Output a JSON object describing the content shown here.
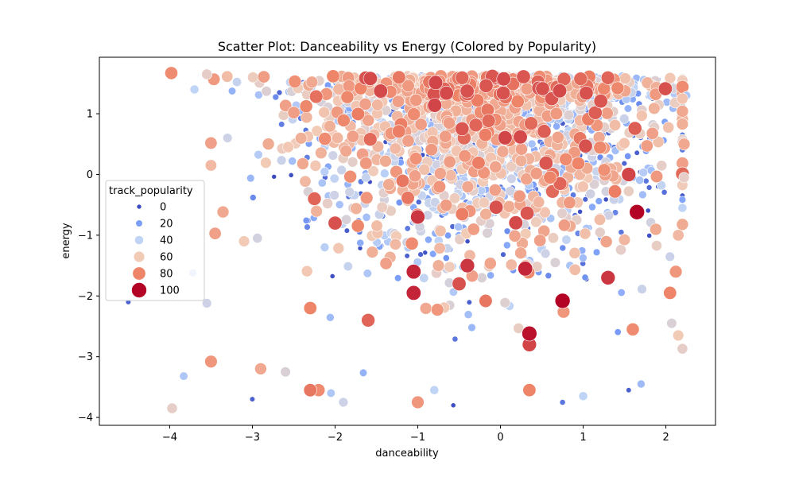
{
  "chart_data": {
    "type": "scatter",
    "title": "Scatter Plot: Danceability vs Energy (Colored by Popularity)",
    "xlabel": "danceability",
    "ylabel": "energy",
    "xlim": [
      -4.85,
      2.6
    ],
    "ylim": [
      -4.13,
      1.93
    ],
    "x_ticks": [
      -4,
      -3,
      -2,
      -1,
      0,
      1,
      2
    ],
    "y_ticks": [
      -4,
      -3,
      -2,
      -1,
      0,
      1
    ],
    "grid": false,
    "colormap": "coolwarm",
    "size_and_color_by": "track_popularity",
    "legend": {
      "title": "track_popularity",
      "placement": "center-left",
      "entries": [
        {
          "label": "0",
          "value": 0,
          "color": "#3b4cc0"
        },
        {
          "label": "20",
          "value": 20,
          "color": "#7b9ff9"
        },
        {
          "label": "40",
          "value": 40,
          "color": "#c0d4f5"
        },
        {
          "label": "60",
          "value": 60,
          "color": "#f2cbb7"
        },
        {
          "label": "80",
          "value": 80,
          "color": "#ee8468"
        },
        {
          "label": "100",
          "value": 100,
          "color": "#b40426"
        }
      ]
    },
    "series": [
      {
        "points": [
          {
            "x": -3.98,
            "y": 1.67,
            "popularity": 78
          },
          {
            "x": -4.5,
            "y": -2.1,
            "popularity": 5
          },
          {
            "x": -3.97,
            "y": -3.85,
            "popularity": 55
          },
          {
            "x": -3.83,
            "y": -3.32,
            "popularity": 35
          },
          {
            "x": -3.5,
            "y": -3.08,
            "popularity": 75
          },
          {
            "x": -3.45,
            "y": -0.97,
            "popularity": 72
          },
          {
            "x": -3.55,
            "y": -2.12,
            "popularity": 45
          },
          {
            "x": -3.72,
            "y": -1.62,
            "popularity": 30
          },
          {
            "x": -3.7,
            "y": 1.4,
            "popularity": 40
          },
          {
            "x": -3.55,
            "y": 1.65,
            "popularity": 55
          },
          {
            "x": -3.5,
            "y": 0.15,
            "popularity": 65
          },
          {
            "x": -3.3,
            "y": 0.6,
            "popularity": 45
          },
          {
            "x": -3.1,
            "y": -1.1,
            "popularity": 60
          },
          {
            "x": -3.0,
            "y": -3.7,
            "popularity": 5
          },
          {
            "x": -2.9,
            "y": -3.2,
            "popularity": 70
          },
          {
            "x": -2.6,
            "y": -3.25,
            "popularity": 50
          },
          {
            "x": -2.3,
            "y": -3.55,
            "popularity": 82
          },
          {
            "x": -2.2,
            "y": -3.55,
            "popularity": 78
          },
          {
            "x": -2.05,
            "y": -3.6,
            "popularity": 35
          },
          {
            "x": -1.9,
            "y": -3.75,
            "popularity": 45
          },
          {
            "x": -1.0,
            "y": -3.75,
            "popularity": 75
          },
          {
            "x": -0.8,
            "y": -3.55,
            "popularity": 40
          },
          {
            "x": 0.75,
            "y": -3.75,
            "popularity": 10
          },
          {
            "x": 1.0,
            "y": -3.65,
            "popularity": 40
          },
          {
            "x": 0.35,
            "y": -3.55,
            "popularity": 80
          },
          {
            "x": 1.55,
            "y": -3.55,
            "popularity": 5
          },
          {
            "x": 1.7,
            "y": -3.45,
            "popularity": 30
          },
          {
            "x": 2.2,
            "y": -2.87,
            "popularity": 55
          },
          {
            "x": 2.15,
            "y": -2.65,
            "popularity": 60
          },
          {
            "x": 2.07,
            "y": -2.45,
            "popularity": 50
          },
          {
            "x": 2.25,
            "y": 1.3,
            "popularity": 35
          },
          {
            "x": 2.2,
            "y": 1.25,
            "popularity": 62
          },
          {
            "x": 2.22,
            "y": 0.5,
            "popularity": 70
          },
          {
            "x": 2.22,
            "y": -0.05,
            "popularity": 55
          },
          {
            "x": 2.2,
            "y": -0.55,
            "popularity": 40
          },
          {
            "x": 2.15,
            "y": -1.0,
            "popularity": 65
          },
          {
            "x": 2.12,
            "y": -1.6,
            "popularity": 75
          },
          {
            "x": 2.05,
            "y": -1.95,
            "popularity": 80
          },
          {
            "x": 0.35,
            "y": -2.62,
            "popularity": 98
          },
          {
            "x": 0.75,
            "y": -2.08,
            "popularity": 100
          },
          {
            "x": 1.65,
            "y": -0.62,
            "popularity": 100
          },
          {
            "x": -1.05,
            "y": -1.6,
            "popularity": 95
          },
          {
            "x": -1.05,
            "y": -1.95,
            "popularity": 95
          },
          {
            "x": 0.35,
            "y": -2.8,
            "popularity": 90
          },
          {
            "x": -2.3,
            "y": -2.2,
            "popularity": 80
          },
          {
            "x": -2.0,
            "y": -0.8,
            "popularity": 88
          },
          {
            "x": -1.6,
            "y": -2.4,
            "popularity": 85
          },
          {
            "x": -0.5,
            "y": -1.8,
            "popularity": 88
          },
          {
            "x": 1.3,
            "y": -1.7,
            "popularity": 92
          },
          {
            "x": 0.6,
            "y": -0.05,
            "popularity": 80
          },
          {
            "x": 1.55,
            "y": 0.0,
            "popularity": 90
          },
          {
            "x": -2.25,
            "y": -0.4,
            "popularity": 85
          },
          {
            "x": -1.0,
            "y": -0.7,
            "popularity": 92
          },
          {
            "x": 0.3,
            "y": -1.55,
            "popularity": 95
          },
          {
            "x": -0.4,
            "y": -1.5,
            "popularity": 92
          },
          {
            "x": 1.6,
            "y": -2.55,
            "popularity": 78
          }
        ]
      }
    ]
  }
}
